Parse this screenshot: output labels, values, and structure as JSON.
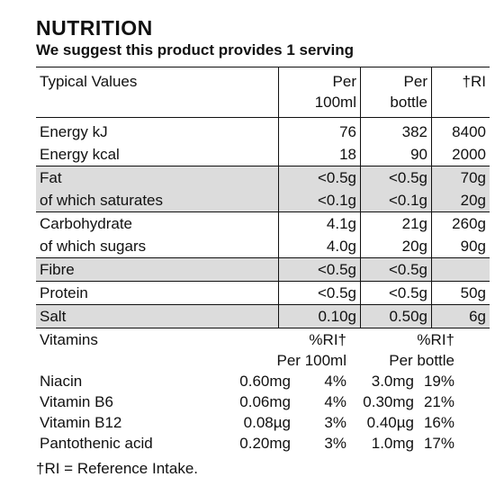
{
  "title": "NUTRITION",
  "subtitle": "We suggest this product provides 1 serving",
  "table": {
    "header": {
      "col1": "Typical Values",
      "col2a": "Per",
      "col2b": "100ml",
      "col3a": "Per",
      "col3b": "bottle",
      "col4": "†RI"
    },
    "rows": [
      {
        "label": "Energy kJ",
        "per100": "76",
        "perbottle": "382",
        "ri": "8400",
        "shaded": false
      },
      {
        "label": "Energy kcal",
        "per100": "18",
        "perbottle": "90",
        "ri": "2000",
        "shaded": false
      },
      {
        "label": "Fat",
        "per100": "<0.5g",
        "perbottle": "<0.5g",
        "ri": "70g",
        "shaded": true
      },
      {
        "label": "of which saturates",
        "per100": "<0.1g",
        "perbottle": "<0.1g",
        "ri": "20g",
        "shaded": true
      },
      {
        "label": "Carbohydrate",
        "per100": "4.1g",
        "perbottle": "21g",
        "ri": "260g",
        "shaded": false
      },
      {
        "label": "of which sugars",
        "per100": "4.0g",
        "perbottle": "20g",
        "ri": "90g",
        "shaded": false
      },
      {
        "label": "Fibre",
        "per100": "<0.5g",
        "perbottle": "<0.5g",
        "ri": "",
        "shaded": true
      },
      {
        "label": "Protein",
        "per100": "<0.5g",
        "perbottle": "<0.5g",
        "ri": "50g",
        "shaded": false
      },
      {
        "label": "Salt",
        "per100": "0.10g",
        "perbottle": "0.50g",
        "ri": "6g",
        "shaded": true
      }
    ]
  },
  "vitamins": {
    "header": {
      "label": "Vitamins",
      "ri100": "%RI†",
      "rib": "%RI†",
      "per100": "Per 100ml",
      "perbottle": "Per bottle"
    },
    "rows": [
      {
        "name": "Niacin",
        "v100": "0.60mg",
        "ri100": "4%",
        "vb": "3.0mg",
        "rib": "19%"
      },
      {
        "name": "Vitamin B6",
        "v100": "0.06mg",
        "ri100": "4%",
        "vb": "0.30mg",
        "rib": "21%"
      },
      {
        "name": "Vitamin B12",
        "v100": "0.08µg",
        "ri100": "3%",
        "vb": "0.40µg",
        "rib": "16%"
      },
      {
        "name": "Pantothenic acid",
        "v100": "0.20mg",
        "ri100": "3%",
        "vb": "1.0mg",
        "rib": "17%"
      }
    ]
  },
  "footnote": "†RI = Reference Intake.",
  "colors": {
    "shade": "#dcdcdc",
    "text": "#111111"
  }
}
